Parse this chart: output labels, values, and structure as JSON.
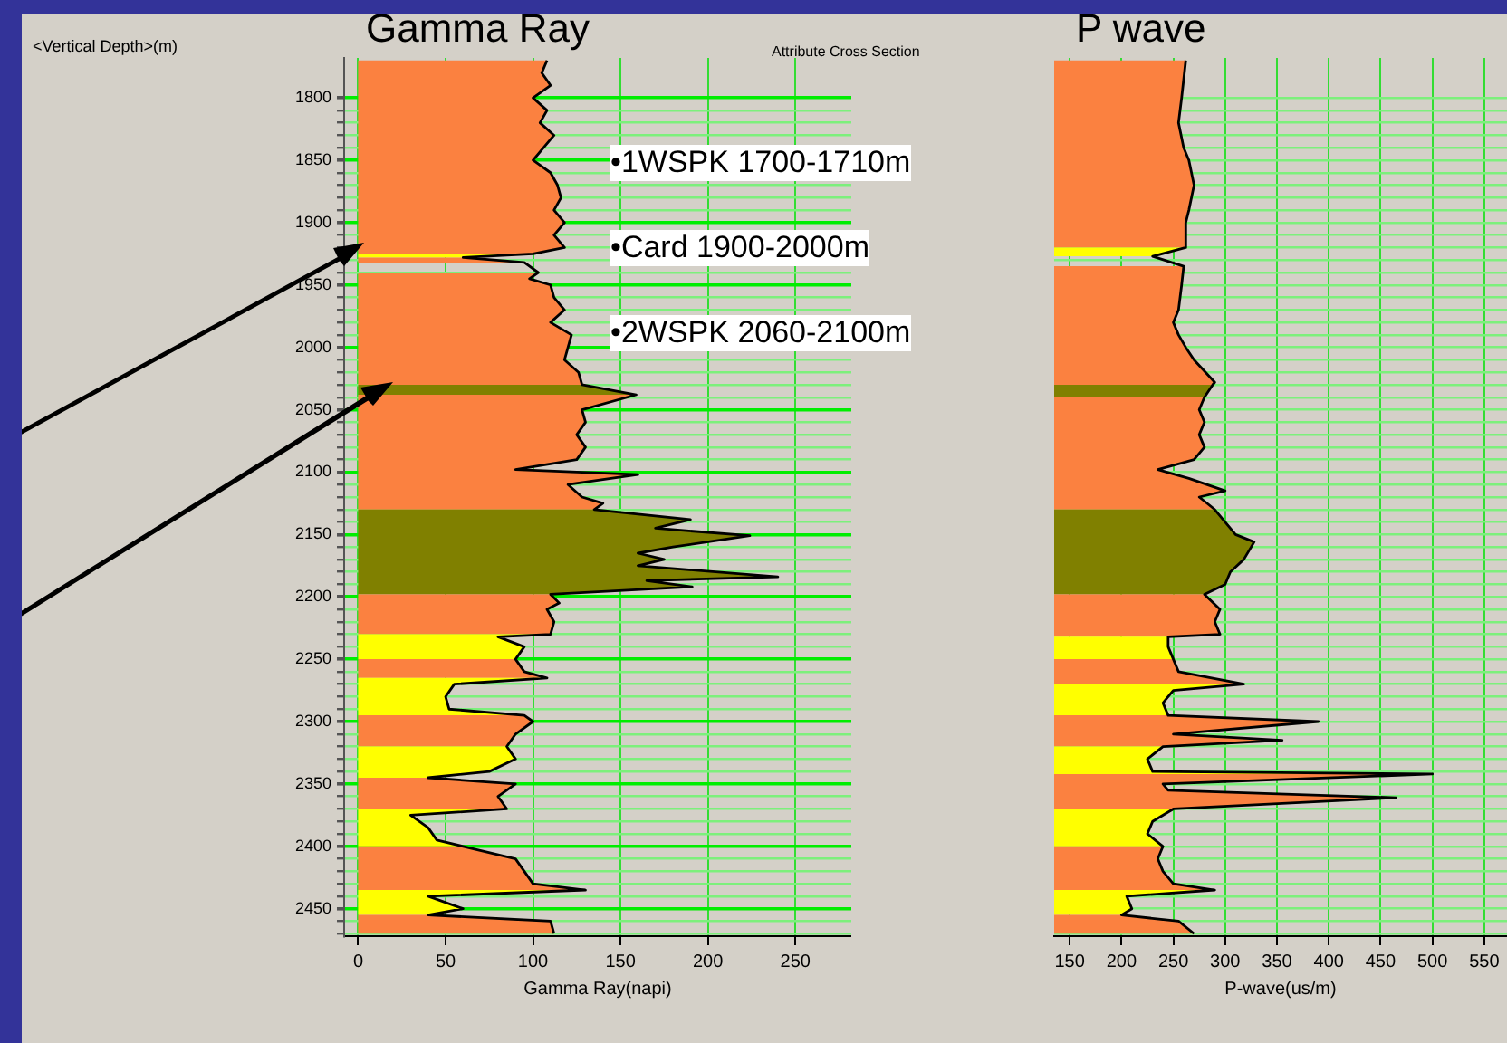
{
  "chart_data": [
    {
      "type": "line",
      "orientation": "horizontal",
      "title": "Gamma Ray",
      "xlabel": "Gamma Ray(napi)",
      "ylabel": "<Vertical Depth>(m)",
      "annotations": [
        "•1WSPK 1700-1710m",
        "•Card 1900-2000m",
        "•2WSPK 2060-2100m"
      ],
      "xlim": [
        -8,
        282
      ],
      "xticks": [
        0,
        50,
        100,
        150,
        200,
        250
      ],
      "ylim": [
        2472,
        1768
      ],
      "yticks": [
        1800,
        {
          "value": 1810,
          "label": null
        },
        {
          "value": 1820,
          "label": null
        },
        {
          "value": 1830,
          "label": null
        },
        {
          "value": 1840,
          "label": null
        },
        1850,
        {
          "value": 1860,
          "label": null
        },
        {
          "value": 1870,
          "label": null
        },
        {
          "value": 1880,
          "label": null
        },
        {
          "value": 1890,
          "label": null
        },
        1900,
        {
          "value": 1910,
          "label": null
        },
        {
          "value": 1920,
          "label": null
        },
        {
          "value": 1930,
          "label": null
        },
        {
          "value": 1940,
          "label": null
        },
        1950,
        {
          "value": 1960,
          "label": null
        },
        {
          "value": 1970,
          "label": null
        },
        {
          "value": 1980,
          "label": null
        },
        {
          "value": 1990,
          "label": null
        },
        2000,
        {
          "value": 2010,
          "label": null
        },
        {
          "value": 2020,
          "label": null
        },
        {
          "value": 2030,
          "label": null
        },
        {
          "value": 2040,
          "label": null
        },
        2050,
        {
          "value": 2060,
          "label": null
        },
        {
          "value": 2070,
          "label": null
        },
        {
          "value": 2080,
          "label": null
        },
        {
          "value": 2090,
          "label": null
        },
        2100,
        {
          "value": 2110,
          "label": null
        },
        {
          "value": 2120,
          "label": null
        },
        {
          "value": 2130,
          "label": null
        },
        {
          "value": 2140,
          "label": null
        },
        2150,
        {
          "value": 2160,
          "label": null
        },
        {
          "value": 2170,
          "label": null
        },
        {
          "value": 2180,
          "label": null
        },
        {
          "value": 2190,
          "label": null
        },
        2200,
        {
          "value": 2210,
          "label": null
        },
        {
          "value": 2220,
          "label": null
        },
        {
          "value": 2230,
          "label": null
        },
        {
          "value": 2240,
          "label": null
        },
        2250,
        {
          "value": 2260,
          "label": null
        },
        {
          "value": 2270,
          "label": null
        },
        {
          "value": 2280,
          "label": null
        },
        {
          "value": 2290,
          "label": null
        },
        2300,
        {
          "value": 2310,
          "label": null
        },
        {
          "value": 2320,
          "label": null
        },
        {
          "value": 2330,
          "label": null
        },
        {
          "value": 2340,
          "label": null
        },
        2350,
        {
          "value": 2360,
          "label": null
        },
        {
          "value": 2370,
          "label": null
        },
        {
          "value": 2380,
          "label": null
        },
        {
          "value": 2390,
          "label": null
        },
        2400,
        {
          "value": 2410,
          "label": null
        },
        {
          "value": 2420,
          "label": null
        },
        {
          "value": 2430,
          "label": null
        },
        {
          "value": 2440,
          "label": null
        },
        2450,
        {
          "value": 2460,
          "label": null
        },
        {
          "value": 2470,
          "label": null
        }
      ],
      "grid": true,
      "series": [
        {
          "type": "area",
          "color": "#fb8140",
          "values": [
            108,
            105,
            110,
            100,
            108,
            104,
            112,
            106,
            100,
            110,
            114,
            116,
            112,
            118,
            112,
            118,
            100
          ],
          "x": [
            1770,
            1780,
            1790,
            1800,
            1810,
            1820,
            1830,
            1840,
            1850,
            1860,
            1870,
            1880,
            1890,
            1900,
            1910,
            1920,
            1925
          ]
        },
        {
          "type": "area",
          "color": "#ffff00",
          "values": [
            100,
            60
          ],
          "x": [
            1925,
            1928
          ]
        },
        {
          "type": "area",
          "color": "#fb8140",
          "values": [
            60,
            95
          ],
          "x": [
            1928,
            1932
          ]
        },
        {
          "type": "area",
          "color": "#fb8140",
          "values": [
            103,
            98,
            110,
            112,
            118,
            110,
            122,
            120,
            118,
            126,
            128
          ],
          "x": [
            1940,
            1945,
            1950,
            1960,
            1970,
            1980,
            1990,
            2000,
            2010,
            2020,
            2030
          ]
        },
        {
          "type": "area",
          "color": "#808000",
          "values": [
            128,
            159
          ],
          "x": [
            2030,
            2038
          ]
        },
        {
          "type": "area",
          "color": "#fb8140",
          "values": [
            159,
            128,
            130,
            125,
            130,
            125,
            90,
            160,
            120,
            128,
            140,
            135
          ],
          "x": [
            2038,
            2050,
            2060,
            2070,
            2080,
            2090,
            2098,
            2102,
            2110,
            2120,
            2125,
            2130
          ]
        },
        {
          "type": "area",
          "color": "#808000",
          "values": [
            135,
            190,
            170,
            224,
            180,
            160,
            175,
            160,
            240,
            165,
            191,
            110
          ],
          "x": [
            2130,
            2138,
            2145,
            2151,
            2160,
            2165,
            2170,
            2175,
            2184,
            2187,
            2192,
            2198
          ]
        },
        {
          "type": "area",
          "color": "#fb8140",
          "values": [
            110,
            115,
            108,
            112,
            110
          ],
          "x": [
            2198,
            2205,
            2210,
            2220,
            2230
          ]
        },
        {
          "type": "area",
          "color": "#ffff00",
          "values": [
            110,
            80,
            95,
            90
          ],
          "x": [
            2230,
            2232,
            2240,
            2250
          ]
        },
        {
          "type": "area",
          "color": "#fb8140",
          "values": [
            90,
            95,
            108
          ],
          "x": [
            2250,
            2260,
            2265
          ]
        },
        {
          "type": "area",
          "color": "#ffff00",
          "values": [
            108,
            55,
            50,
            52,
            95
          ],
          "x": [
            2265,
            2270,
            2280,
            2290,
            2295
          ]
        },
        {
          "type": "area",
          "color": "#fb8140",
          "values": [
            95,
            100,
            90,
            85
          ],
          "x": [
            2295,
            2300,
            2310,
            2320
          ]
        },
        {
          "type": "area",
          "color": "#ffff00",
          "values": [
            85,
            90,
            75,
            40
          ],
          "x": [
            2320,
            2330,
            2340,
            2345
          ]
        },
        {
          "type": "area",
          "color": "#fb8140",
          "values": [
            40,
            90,
            80,
            85
          ],
          "x": [
            2345,
            2350,
            2360,
            2370
          ]
        },
        {
          "type": "area",
          "color": "#ffff00",
          "values": [
            85,
            30,
            40,
            45,
            60
          ],
          "x": [
            2370,
            2375,
            2385,
            2395,
            2400
          ]
        },
        {
          "type": "area",
          "color": "#fb8140",
          "values": [
            60,
            90,
            95,
            100,
            130
          ],
          "x": [
            2400,
            2410,
            2420,
            2430,
            2435
          ]
        },
        {
          "type": "area",
          "color": "#ffff00",
          "values": [
            130,
            40,
            60,
            40
          ],
          "x": [
            2435,
            2440,
            2450,
            2455
          ]
        },
        {
          "type": "area",
          "color": "#fb8140",
          "values": [
            40,
            110,
            112
          ],
          "x": [
            2455,
            2460,
            2470
          ]
        },
        {
          "type": "line",
          "color": "#000000",
          "values": [
            108,
            105,
            110,
            100,
            108,
            104,
            112,
            106,
            100,
            110,
            114,
            116,
            112,
            118,
            112,
            118,
            100,
            60,
            95,
            103,
            98,
            110,
            112,
            118,
            110,
            122,
            120,
            118,
            126,
            128,
            159,
            128,
            130,
            125,
            130,
            125,
            90,
            160,
            120,
            128,
            140,
            135,
            190,
            170,
            224,
            180,
            160,
            175,
            160,
            240,
            165,
            191,
            110,
            115,
            108,
            112,
            110,
            80,
            95,
            90,
            95,
            108,
            55,
            50,
            52,
            95,
            100,
            90,
            85,
            90,
            75,
            40,
            90,
            80,
            85,
            30,
            40,
            45,
            60,
            90,
            95,
            100,
            130,
            40,
            60,
            40,
            110,
            112
          ],
          "x": [
            1770,
            1780,
            1790,
            1800,
            1810,
            1820,
            1830,
            1840,
            1850,
            1860,
            1870,
            1880,
            1890,
            1900,
            1910,
            1920,
            1925,
            1928,
            1932,
            1940,
            1945,
            1950,
            1960,
            1970,
            1980,
            1990,
            2000,
            2010,
            2020,
            2030,
            2038,
            2050,
            2060,
            2070,
            2080,
            2090,
            2098,
            2102,
            2110,
            2120,
            2125,
            2130,
            2138,
            2145,
            2151,
            2160,
            2165,
            2170,
            2175,
            2184,
            2187,
            2192,
            2198,
            2205,
            2210,
            2220,
            2230,
            2232,
            2240,
            2250,
            2260,
            2265,
            2270,
            2280,
            2290,
            2295,
            2300,
            2310,
            2320,
            2330,
            2340,
            2345,
            2350,
            2360,
            2370,
            2375,
            2385,
            2395,
            2400,
            2410,
            2420,
            2430,
            2435,
            2440,
            2450,
            2455,
            2460,
            2470
          ]
        }
      ]
    },
    {
      "type": "line",
      "orientation": "horizontal",
      "title": "P wave",
      "xlabel": "P-wave(us/m)",
      "annotations": [
        "Attribute Cross Section"
      ],
      "xlim": [
        135,
        572
      ],
      "xticks": [
        150,
        200,
        250,
        300,
        350,
        400,
        450,
        500,
        550
      ],
      "ylim": [
        2472,
        1768
      ],
      "yticks": [
        1800,
        1810,
        1820,
        1830,
        1840,
        1850,
        1860,
        1870,
        1880,
        1890,
        1900,
        1910,
        1920,
        1930,
        1940,
        1950,
        1960,
        1970,
        1980,
        1990,
        2000,
        2010,
        2020,
        2030,
        2040,
        2050,
        2060,
        2070,
        2080,
        2090,
        2100,
        2110,
        2120,
        2130,
        2140,
        2150,
        2160,
        2170,
        2180,
        2190,
        2200,
        2210,
        2220,
        2230,
        2240,
        2250,
        2260,
        2270,
        2280,
        2290,
        2300,
        2310,
        2320,
        2330,
        2340,
        2350,
        2360,
        2370,
        2380,
        2390,
        2400,
        2410,
        2420,
        2430,
        2440,
        2450,
        2460,
        2470
      ],
      "tick_labels": "x",
      "grid": true,
      "series": [
        {
          "type": "area",
          "color": "#fb8140",
          "values": [
            262,
            258,
            255,
            260,
            265,
            270,
            265,
            262,
            262
          ],
          "x": [
            1770,
            1800,
            1820,
            1840,
            1850,
            1870,
            1890,
            1900,
            1920
          ]
        },
        {
          "type": "area",
          "color": "#ffff00",
          "values": [
            262,
            230
          ],
          "x": [
            1920,
            1927
          ]
        },
        {
          "type": "area",
          "color": "#fb8140",
          "values": [
            260,
            258,
            255,
            250,
            255,
            262,
            270,
            290,
            288
          ],
          "x": [
            1935,
            1950,
            1970,
            1980,
            1990,
            2000,
            2010,
            2028,
            2030
          ]
        },
        {
          "type": "area",
          "color": "#808000",
          "values": [
            288,
            280
          ],
          "x": [
            2030,
            2040
          ]
        },
        {
          "type": "area",
          "color": "#fb8140",
          "values": [
            280,
            275,
            280,
            275,
            280,
            270,
            235,
            265,
            300,
            275,
            290
          ],
          "x": [
            2040,
            2050,
            2060,
            2070,
            2080,
            2090,
            2098,
            2105,
            2115,
            2120,
            2130
          ]
        },
        {
          "type": "area",
          "color": "#808000",
          "values": [
            290,
            300,
            310,
            328,
            318,
            305,
            300,
            280
          ],
          "x": [
            2130,
            2140,
            2150,
            2156,
            2170,
            2180,
            2190,
            2198
          ]
        },
        {
          "type": "area",
          "color": "#fb8140",
          "values": [
            280,
            295,
            290,
            295,
            245
          ],
          "x": [
            2198,
            2210,
            2220,
            2230,
            2232
          ]
        },
        {
          "type": "area",
          "color": "#ffff00",
          "values": [
            245,
            245,
            250
          ],
          "x": [
            2232,
            2240,
            2250
          ]
        },
        {
          "type": "area",
          "color": "#fb8140",
          "values": [
            250,
            255,
            318
          ],
          "x": [
            2250,
            2260,
            2270
          ]
        },
        {
          "type": "area",
          "color": "#ffff00",
          "values": [
            318,
            250,
            240,
            245
          ],
          "x": [
            2270,
            2275,
            2285,
            2295
          ]
        },
        {
          "type": "area",
          "color": "#fb8140",
          "values": [
            245,
            390,
            250,
            355,
            240
          ],
          "x": [
            2295,
            2300,
            2310,
            2315,
            2320
          ]
        },
        {
          "type": "area",
          "color": "#ffff00",
          "values": [
            240,
            225,
            230,
            500
          ],
          "x": [
            2320,
            2330,
            2340,
            2342
          ]
        },
        {
          "type": "area",
          "color": "#fb8140",
          "values": [
            500,
            240,
            245,
            465,
            250
          ],
          "x": [
            2342,
            2350,
            2355,
            2361,
            2370
          ]
        },
        {
          "type": "area",
          "color": "#ffff00",
          "values": [
            250,
            230,
            225,
            240
          ],
          "x": [
            2370,
            2380,
            2390,
            2400
          ]
        },
        {
          "type": "area",
          "color": "#fb8140",
          "values": [
            240,
            235,
            240,
            250,
            290
          ],
          "x": [
            2400,
            2410,
            2420,
            2430,
            2435
          ]
        },
        {
          "type": "area",
          "color": "#ffff00",
          "values": [
            290,
            205,
            210,
            200
          ],
          "x": [
            2435,
            2440,
            2450,
            2455
          ]
        },
        {
          "type": "area",
          "color": "#fb8140",
          "values": [
            200,
            255,
            270
          ],
          "x": [
            2455,
            2460,
            2470
          ]
        },
        {
          "type": "line",
          "color": "#000000",
          "values": [
            262,
            258,
            255,
            260,
            265,
            270,
            265,
            262,
            262,
            230,
            260,
            258,
            255,
            250,
            255,
            262,
            270,
            290,
            288,
            280,
            275,
            280,
            275,
            280,
            270,
            235,
            265,
            300,
            275,
            290,
            300,
            310,
            328,
            318,
            305,
            300,
            280,
            295,
            290,
            295,
            245,
            245,
            250,
            255,
            318,
            250,
            240,
            245,
            390,
            250,
            355,
            240,
            225,
            230,
            500,
            240,
            245,
            465,
            250,
            230,
            225,
            240,
            235,
            240,
            250,
            290,
            205,
            210,
            200,
            255,
            270
          ],
          "x": [
            1770,
            1800,
            1820,
            1840,
            1850,
            1870,
            1890,
            1900,
            1920,
            1927,
            1935,
            1950,
            1970,
            1980,
            1990,
            2000,
            2010,
            2028,
            2030,
            2040,
            2050,
            2060,
            2070,
            2080,
            2090,
            2098,
            2105,
            2115,
            2120,
            2130,
            2140,
            2150,
            2156,
            2170,
            2180,
            2190,
            2198,
            2210,
            2220,
            2230,
            2232,
            2240,
            2250,
            2260,
            2270,
            2275,
            2285,
            2295,
            2300,
            2310,
            2315,
            2320,
            2330,
            2340,
            2342,
            2350,
            2355,
            2361,
            2370,
            2380,
            2390,
            2400,
            2410,
            2420,
            2430,
            2435,
            2440,
            2450,
            2455,
            2460,
            2470
          ]
        }
      ]
    }
  ]
}
